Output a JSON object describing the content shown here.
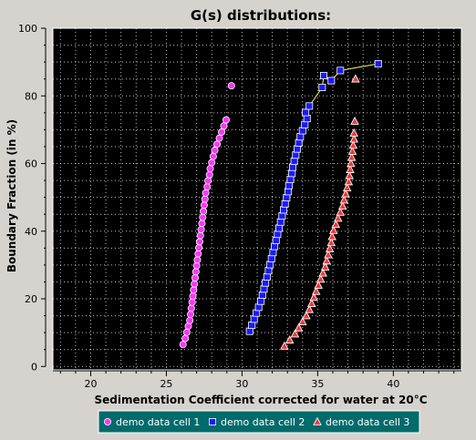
{
  "chart_data": {
    "type": "scatter",
    "title": "G(s) distributions:",
    "xlabel": "Sedimentation Coefficient corrected for water at 20°C",
    "ylabel": "Boundary Fraction (in %)",
    "xlim": [
      17.5,
      44.5
    ],
    "ylim": [
      -1,
      100
    ],
    "x_ticks": [
      20,
      25,
      30,
      35,
      40
    ],
    "y_ticks": [
      0,
      20,
      40,
      60,
      80,
      100
    ],
    "grid": true,
    "legend": "bottom",
    "background_color": "#000000",
    "grid_color": "#ffffff",
    "series": [
      {
        "name": "demo data cell 1",
        "marker": "circle",
        "color": "#ff33ff",
        "connect": false,
        "x": [
          26.1,
          26.25,
          26.35,
          26.45,
          26.55,
          26.6,
          26.65,
          26.7,
          26.75,
          26.8,
          26.85,
          26.9,
          26.95,
          27.0,
          27.05,
          27.1,
          27.15,
          27.2,
          27.25,
          27.3,
          27.35,
          27.4,
          27.45,
          27.5,
          27.55,
          27.6,
          27.7,
          27.75,
          27.85,
          27.9,
          28.0,
          28.1,
          28.2,
          28.35,
          28.5,
          28.65,
          28.8,
          28.95,
          29.3
        ],
        "y": [
          6.5,
          8.3,
          10.1,
          11.9,
          13.6,
          15.4,
          17.2,
          19.0,
          20.8,
          22.6,
          24.4,
          26.2,
          28.0,
          29.8,
          31.5,
          33.3,
          35.1,
          36.9,
          38.7,
          40.5,
          42.3,
          44.1,
          45.9,
          47.7,
          49.5,
          51.3,
          53.1,
          54.9,
          56.7,
          58.5,
          60.3,
          62.1,
          63.9,
          65.7,
          67.5,
          69.3,
          71.1,
          72.9,
          83.0
        ]
      },
      {
        "name": "demo data cell 2",
        "marker": "square",
        "color": "#1a1aff",
        "connect": true,
        "x": [
          30.5,
          30.65,
          30.8,
          30.95,
          31.1,
          31.25,
          31.35,
          31.45,
          31.55,
          31.65,
          31.75,
          31.85,
          31.95,
          32.05,
          32.15,
          32.25,
          32.35,
          32.45,
          32.55,
          32.65,
          32.75,
          32.85,
          32.95,
          33.05,
          33.1,
          33.2,
          33.3,
          33.35,
          33.45,
          33.55,
          33.65,
          33.75,
          33.85,
          34.0,
          34.15,
          34.3,
          34.2,
          34.45,
          35.3,
          35.4,
          35.9,
          36.5,
          39.0
        ],
        "y": [
          10.4,
          12.2,
          14.0,
          15.8,
          17.5,
          19.3,
          21.1,
          22.9,
          24.7,
          26.5,
          28.3,
          30.1,
          31.9,
          33.7,
          35.5,
          37.3,
          39.1,
          40.9,
          42.7,
          44.5,
          46.3,
          48.1,
          49.9,
          51.7,
          53.5,
          55.3,
          57.1,
          58.9,
          60.7,
          62.5,
          64.3,
          66.1,
          67.9,
          69.7,
          71.5,
          73.3,
          75.1,
          77.0,
          82.5,
          86.0,
          84.5,
          87.5,
          89.5
        ]
      },
      {
        "name": "demo data cell 3",
        "marker": "triangle",
        "color": "#ff3333",
        "connect": false,
        "x": [
          32.8,
          33.15,
          33.5,
          33.75,
          34.0,
          34.25,
          34.45,
          34.6,
          34.75,
          34.9,
          35.05,
          35.2,
          35.35,
          35.5,
          35.6,
          35.7,
          35.8,
          35.9,
          35.95,
          36.05,
          36.2,
          36.35,
          36.5,
          36.65,
          36.75,
          36.85,
          36.95,
          37.05,
          37.1,
          37.15,
          37.2,
          37.25,
          37.3,
          37.35,
          37.4,
          37.4,
          37.45,
          37.5
        ],
        "y": [
          6.0,
          7.8,
          9.6,
          11.4,
          13.2,
          15.0,
          16.8,
          18.6,
          20.4,
          22.2,
          24.0,
          25.8,
          27.6,
          29.4,
          31.2,
          33.0,
          34.8,
          36.6,
          38.4,
          40.2,
          42.0,
          43.8,
          45.6,
          47.4,
          49.2,
          51.0,
          52.8,
          54.6,
          56.4,
          58.2,
          60.0,
          61.8,
          63.6,
          65.4,
          67.2,
          69.0,
          72.5,
          85.0
        ]
      }
    ]
  }
}
